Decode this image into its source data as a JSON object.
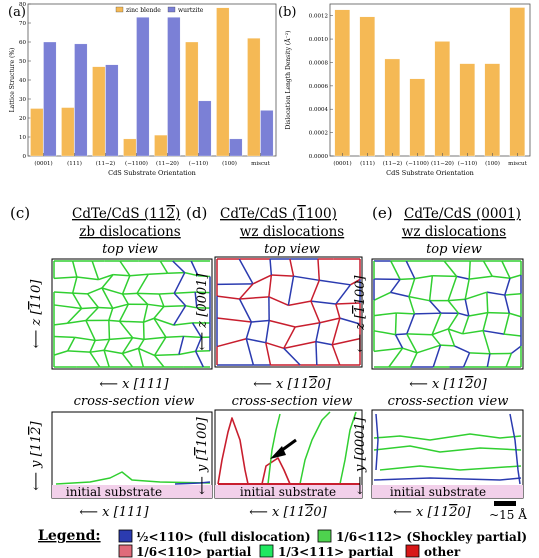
{
  "chart_data": [
    {
      "type": "bar",
      "panel_label": "(a)",
      "categories": [
        "(0001)",
        "(111)",
        "(11−2)",
        "(−1100)",
        "(11−20)",
        "(−110)",
        "(100)",
        "miscut"
      ],
      "series": [
        {
          "name": "zinc blende",
          "color": "#f5b955",
          "values": [
            25,
            25.5,
            47,
            9,
            11,
            60,
            78,
            62
          ]
        },
        {
          "name": "wurtzite",
          "color": "#7b80d6",
          "values": [
            60,
            59,
            48,
            73,
            73,
            29,
            9,
            24
          ]
        }
      ],
      "ylabel": "Lattice Structure (%)",
      "xlabel": "CdS Substrate Orientation",
      "ylim": [
        0,
        80
      ],
      "yticks": [
        0,
        10,
        20,
        30,
        40,
        50,
        60,
        70,
        80
      ],
      "legend_position": "top-center",
      "grid": false
    },
    {
      "type": "bar",
      "panel_label": "(b)",
      "categories": [
        "(0001)",
        "(111)",
        "(11−2)",
        "(−1100)",
        "(11−20)",
        "(−110)",
        "(100)",
        "miscut"
      ],
      "series": [
        {
          "color": "#f5b955",
          "values": [
            0.00125,
            0.00119,
            0.00083,
            0.00066,
            0.00098,
            0.00079,
            0.00079,
            0.00127
          ]
        }
      ],
      "ylabel": "Dislocation Length Density (Å⁻²)",
      "xlabel": "CdS Substrate Orientation",
      "ylim": [
        0,
        0.0013
      ],
      "yticks": [
        "0.0000",
        "0.0002",
        "0.0004",
        "0.0006",
        "0.0008",
        "0.0010",
        "0.0012"
      ],
      "grid": false
    }
  ],
  "panels": {
    "c": {
      "label": "(c)",
      "line1": "CdTe/CdS (11",
      "line1_bar": "2",
      "line1_end": ")",
      "line2": "zb dislocations",
      "top_view": "top view",
      "top_vaxis": "z [",
      "top_vaxis_bar": "1",
      "top_vaxis_end": "10]",
      "haxis": "x [111]",
      "cross_view": "cross-section view",
      "cross_vaxis": "y [11",
      "cross_vaxis_bar": "2",
      "cross_vaxis_end": "]"
    },
    "d": {
      "label": "(d)",
      "line1": "CdTe/CdS (",
      "line1_bar": "1",
      "line1_end": "100)",
      "line2": "wz dislocations",
      "top_view": "top view",
      "top_vaxis": "z [0001]",
      "haxis": "x [11",
      "haxis_bar": "2",
      "haxis_end": "0]",
      "cross_view": "cross-section view",
      "cross_vaxis": "y [",
      "cross_vaxis_bar": "1",
      "cross_vaxis_end": "100]"
    },
    "e": {
      "label": "(e)",
      "line1": "CdTe/CdS (0001)",
      "line2": "wz dislocations",
      "top_view": "top view",
      "top_vaxis": "z [",
      "top_vaxis_bar": "1",
      "top_vaxis_end": "100]",
      "haxis": "x [11",
      "haxis_bar": "2",
      "haxis_end": "0]",
      "cross_view": "cross-section view",
      "cross_vaxis": "y [0001]",
      "scale_label": "~15 Å"
    }
  },
  "substrate_label": "initial substrate",
  "arrow_glyph": "⟵",
  "legend": {
    "title": "Legend:",
    "items": [
      {
        "color": "#2b3bb0",
        "label": "½<110> (full dislocation)"
      },
      {
        "color": "#4ed24e",
        "label": "1/6<112> (Shockley partial)"
      },
      {
        "color": "#e06a7a",
        "label": "1/6<110> partial"
      },
      {
        "color": "#20e860",
        "label": "1/3<111> partial"
      },
      {
        "color": "#d81818",
        "label": "other"
      }
    ]
  },
  "colors": {
    "green": "#31cf31",
    "blue": "#2b3bb0",
    "red": "#c81e2e",
    "substrate": "#f2d0ea"
  }
}
